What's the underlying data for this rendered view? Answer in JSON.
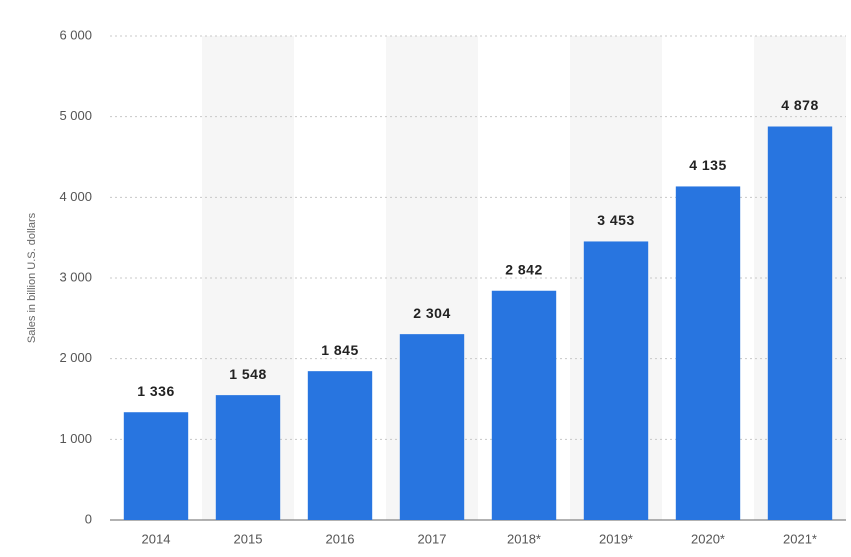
{
  "chart_data": {
    "type": "bar",
    "y_label": "Sales in billion U.S. dollars",
    "categories": [
      "2014",
      "2015",
      "2016",
      "2017",
      "2018*",
      "2019*",
      "2020*",
      "2021*"
    ],
    "values": [
      1336,
      1548,
      1845,
      2304,
      2842,
      3453,
      4135,
      4878
    ],
    "value_labels": [
      "1 336",
      "1 548",
      "1 845",
      "2 304",
      "2 842",
      "3 453",
      "4 135",
      "4 878"
    ],
    "color": "#2875e0",
    "ylim": [
      0,
      6000
    ],
    "yticks": [
      0,
      {
        "value": 1000,
        "label": "1 000"
      },
      {
        "value": 2000,
        "label": "2 000"
      },
      {
        "value": 3000,
        "label": "3 000"
      },
      {
        "value": 4000,
        "label": "4 000"
      },
      {
        "value": 5000,
        "label": "5 000"
      },
      {
        "value": 6000,
        "label": "6 000"
      }
    ],
    "grid": true
  }
}
